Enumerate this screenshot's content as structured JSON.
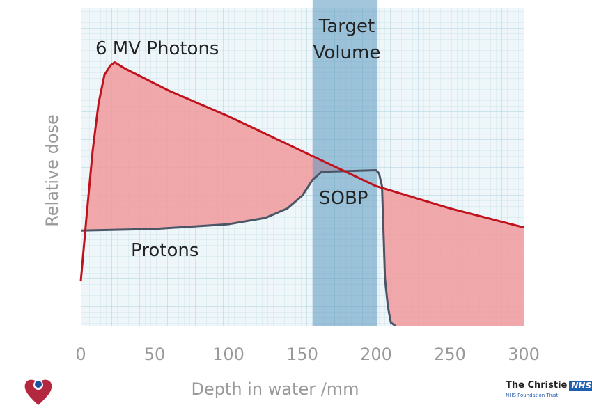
{
  "chart_data": {
    "type": "area",
    "title": "",
    "xlabel": "Depth in water /mm",
    "ylabel": "Relative dose",
    "xlim": [
      0,
      300
    ],
    "ylim": [
      0,
      1
    ],
    "x_ticks": [
      "0",
      "50",
      "100",
      "150",
      "200",
      "250",
      "300"
    ],
    "grid": true,
    "series": [
      {
        "name": "6 MV Photons",
        "color": "#c0121c",
        "x": [
          0,
          4,
          8,
          12,
          16,
          20,
          23,
          30,
          60,
          100,
          150,
          200,
          250,
          300
        ],
        "y": [
          0.14,
          0.35,
          0.55,
          0.7,
          0.79,
          0.82,
          0.83,
          0.81,
          0.74,
          0.66,
          0.55,
          0.44,
          0.37,
          0.31
        ]
      },
      {
        "name": "Protons",
        "color": "#4a5566",
        "x": [
          0,
          50,
          100,
          125,
          140,
          150,
          157,
          163,
          170,
          200,
          202,
          204,
          205,
          206,
          208,
          210,
          213
        ],
        "y": [
          0.3,
          0.305,
          0.32,
          0.34,
          0.37,
          0.41,
          0.46,
          0.485,
          0.486,
          0.49,
          0.48,
          0.44,
          0.3,
          0.15,
          0.06,
          0.01,
          0
        ]
      }
    ],
    "annotations": {
      "photons": "6 MV Photons",
      "protons": "Protons",
      "sobp": "SOBP",
      "target_line1": "Target",
      "target_line2": "Volume"
    },
    "target_volume_range": [
      157,
      201
    ]
  },
  "logos": {
    "org": "The Christie",
    "nhs": "NHS",
    "subtitle": "NHS Foundation Trust"
  }
}
